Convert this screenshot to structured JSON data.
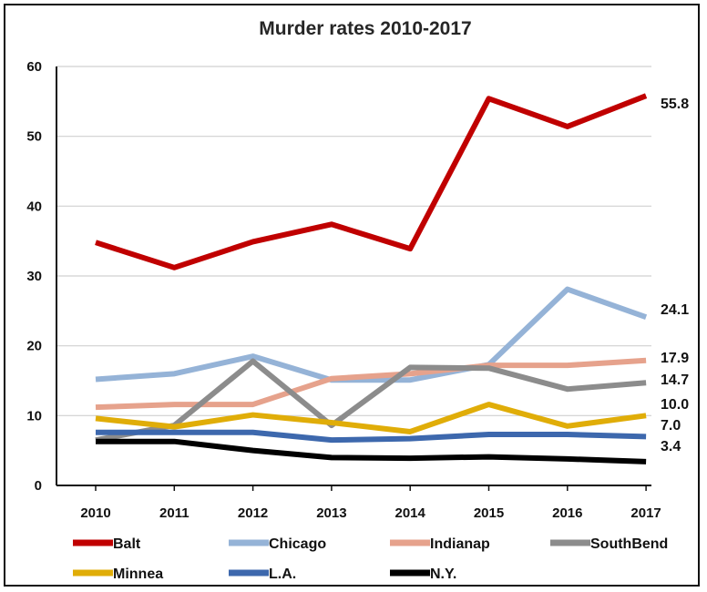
{
  "chart_data": {
    "type": "line",
    "title": "Murder rates 2010-2017",
    "xlabel": "",
    "ylabel": "",
    "x": [
      2010,
      2011,
      2012,
      2013,
      2014,
      2015,
      2016,
      2017
    ],
    "x_tick_labels": [
      "2010",
      "2011",
      "2012",
      "2013",
      "2014",
      "2015",
      "2016",
      "2017"
    ],
    "ylim": [
      0,
      60
    ],
    "y_ticks": [
      0,
      10,
      20,
      30,
      40,
      50,
      60
    ],
    "y_tick_labels": [
      "0",
      "10",
      "20",
      "30",
      "40",
      "50",
      "60"
    ],
    "grid": "horizontal",
    "legend_position": "bottom",
    "series": [
      {
        "name": "Balt",
        "color": "#c00000",
        "values": [
          34.8,
          31.2,
          34.9,
          37.4,
          33.9,
          55.4,
          51.4,
          55.8
        ],
        "end_label": "55.8"
      },
      {
        "name": "Chicago",
        "color": "#95b3d7",
        "values": [
          15.2,
          16.0,
          18.5,
          15.1,
          15.1,
          17.3,
          28.1,
          24.1
        ],
        "end_label": "24.1"
      },
      {
        "name": "Indianap",
        "color": "#e6a28c",
        "values": [
          11.2,
          11.6,
          11.6,
          15.3,
          16.0,
          17.2,
          17.2,
          17.9
        ],
        "end_label": "17.9"
      },
      {
        "name": "SouthBend",
        "color": "#8c8c8c",
        "values": [
          6.5,
          8.6,
          17.8,
          8.6,
          16.9,
          16.8,
          13.8,
          14.7
        ],
        "end_label": "14.7"
      },
      {
        "name": "Minnea",
        "color": "#e0ad08",
        "values": [
          9.6,
          8.4,
          10.1,
          9.0,
          7.7,
          11.6,
          8.5,
          10.0
        ],
        "end_label": "10.0"
      },
      {
        "name": "L.A.",
        "color": "#3d68ad",
        "values": [
          7.6,
          7.6,
          7.6,
          6.5,
          6.7,
          7.3,
          7.3,
          7.0
        ],
        "end_label": "7.0"
      },
      {
        "name": "N.Y.",
        "color": "#000000",
        "values": [
          6.3,
          6.3,
          5.0,
          4.0,
          3.9,
          4.1,
          3.8,
          3.4
        ],
        "end_label": "3.4"
      }
    ]
  }
}
